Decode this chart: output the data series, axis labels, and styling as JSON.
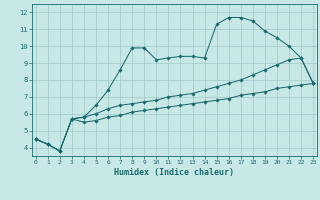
{
  "xlabel": "Humidex (Indice chaleur)",
  "bg_color": "#c8e8e8",
  "grid_color": "#a0c8c8",
  "line_color": "#1a6b6b",
  "xlim": [
    -0.3,
    23.3
  ],
  "ylim": [
    3.5,
    12.5
  ],
  "xticks": [
    0,
    1,
    2,
    3,
    4,
    5,
    6,
    7,
    8,
    9,
    10,
    11,
    12,
    13,
    14,
    15,
    16,
    17,
    18,
    19,
    20,
    21,
    22,
    23
  ],
  "yticks": [
    4,
    5,
    6,
    7,
    8,
    9,
    10,
    11,
    12
  ],
  "curve1_x": [
    0,
    1,
    2,
    3,
    4,
    5,
    6,
    7,
    8,
    9,
    10,
    11,
    12,
    13,
    14,
    15,
    16,
    17,
    18,
    19,
    20,
    21,
    22,
    23
  ],
  "curve1_y": [
    4.5,
    4.2,
    3.8,
    5.7,
    5.8,
    6.5,
    7.4,
    8.6,
    9.9,
    9.9,
    9.2,
    9.3,
    9.4,
    9.4,
    9.3,
    11.3,
    11.7,
    11.7,
    11.5,
    10.9,
    10.5,
    10.0,
    9.3,
    7.8
  ],
  "curve2_x": [
    0,
    1,
    2,
    3,
    4,
    5,
    6,
    7,
    8,
    9,
    10,
    11,
    12,
    13,
    14,
    15,
    16,
    17,
    18,
    19,
    20,
    21,
    22,
    23
  ],
  "curve2_y": [
    4.5,
    4.2,
    3.8,
    5.7,
    5.8,
    6.0,
    6.3,
    6.5,
    6.6,
    6.7,
    6.8,
    7.0,
    7.1,
    7.2,
    7.4,
    7.6,
    7.8,
    8.0,
    8.3,
    8.6,
    8.9,
    9.2,
    9.3,
    7.8
  ],
  "curve3_x": [
    0,
    1,
    2,
    3,
    4,
    5,
    6,
    7,
    8,
    9,
    10,
    11,
    12,
    13,
    14,
    15,
    16,
    17,
    18,
    19,
    20,
    21,
    22,
    23
  ],
  "curve3_y": [
    4.5,
    4.2,
    3.8,
    5.7,
    5.5,
    5.6,
    5.8,
    5.9,
    6.1,
    6.2,
    6.3,
    6.4,
    6.5,
    6.6,
    6.7,
    6.8,
    6.9,
    7.1,
    7.2,
    7.3,
    7.5,
    7.6,
    7.7,
    7.8
  ]
}
